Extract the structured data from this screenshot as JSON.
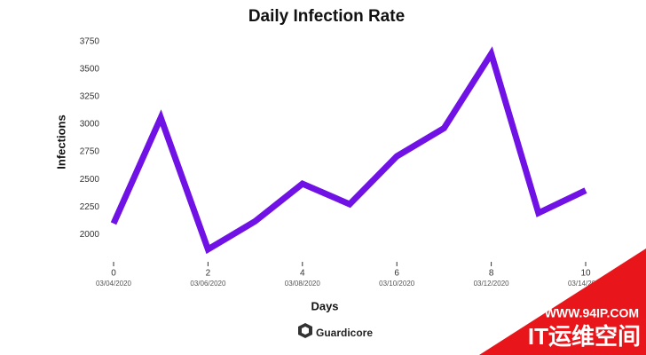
{
  "chart_data": {
    "type": "line",
    "title": "Daily Infection Rate",
    "x_label": "Days",
    "y_label": "Infections",
    "x": [
      0,
      1,
      2,
      3,
      4,
      5,
      6,
      7,
      8,
      9,
      10
    ],
    "series": [
      {
        "name": "Infections",
        "color": "#7012e6",
        "values": [
          2100,
          3060,
          1865,
          2120,
          2460,
          2275,
          2710,
          2965,
          3640,
          2195,
          2400
        ]
      }
    ],
    "xlim": [
      0,
      10
    ],
    "xticks": [
      0,
      2,
      4,
      6,
      8,
      10
    ],
    "xtick_dates": [
      "03/04/2020",
      "03/06/2020",
      "03/08/2020",
      "03/10/2020",
      "03/12/2020",
      "03/14/2020"
    ],
    "ylim": [
      1800,
      3750
    ],
    "yticks": [
      2000,
      2250,
      2500,
      2750,
      3000,
      3250,
      3500,
      3750
    ],
    "grid": false
  },
  "footer": {
    "logo": "Guardicore"
  },
  "watermark": {
    "url": "WWW.94IP.COM",
    "text": "IT运维空间"
  }
}
